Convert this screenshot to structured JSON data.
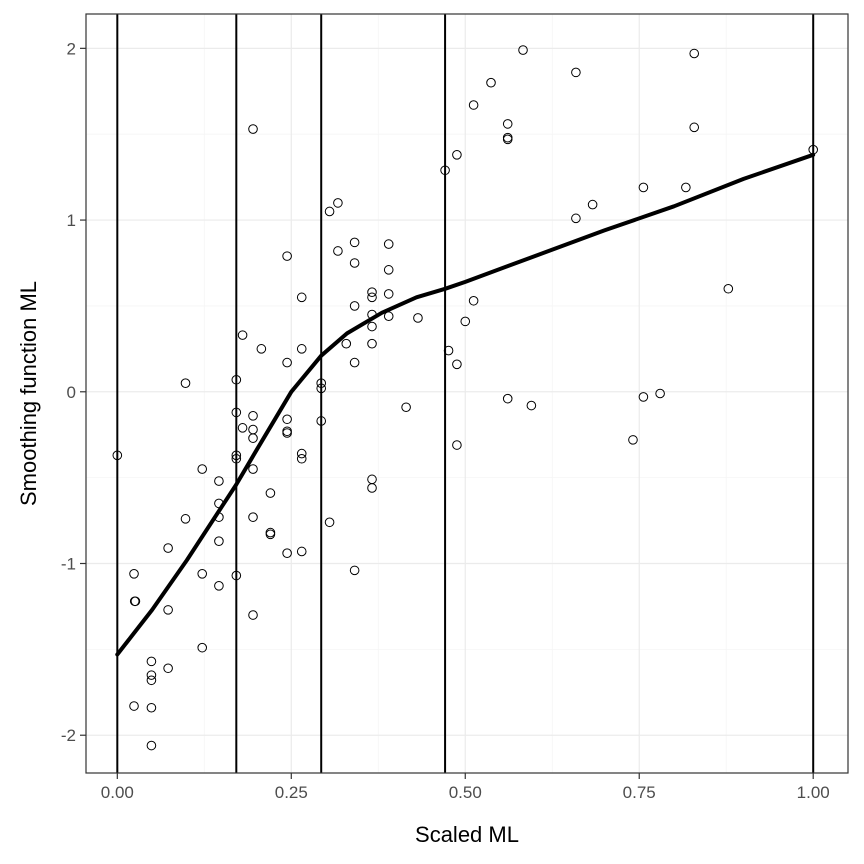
{
  "chart_data": {
    "type": "scatter",
    "title": "",
    "xlabel": "Scaled ML",
    "ylabel": "Smoothing function ML",
    "xlim": [
      -0.045,
      1.05
    ],
    "ylim": [
      -2.22,
      2.2
    ],
    "x_ticks": [
      0.0,
      0.25,
      0.5,
      0.75,
      1.0
    ],
    "x_tick_labels": [
      "0.00",
      "0.25",
      "0.50",
      "0.75",
      "1.00"
    ],
    "y_ticks": [
      -2,
      -1,
      0,
      1,
      2
    ],
    "y_tick_labels": [
      "-2",
      "-1",
      "0",
      "1",
      "2"
    ],
    "grid": true,
    "theme": "bw",
    "colors": {
      "points": "#000000",
      "smooth_line": "#000000",
      "knot_lines": "#000000",
      "grid_major": "#ebebeb",
      "grid_minor": "#f5f5f5",
      "panel_border": "#333333"
    },
    "knots": [
      0.0,
      0.171,
      0.293,
      0.471,
      1.0
    ],
    "points": [
      [
        0.0,
        -0.37
      ],
      [
        0.024,
        -1.06
      ],
      [
        0.025,
        -1.22
      ],
      [
        0.026,
        -1.22
      ],
      [
        0.024,
        -1.83
      ],
      [
        0.049,
        -1.57
      ],
      [
        0.049,
        -1.65
      ],
      [
        0.049,
        -1.68
      ],
      [
        0.049,
        -1.84
      ],
      [
        0.049,
        -2.06
      ],
      [
        0.073,
        -0.91
      ],
      [
        0.073,
        -1.27
      ],
      [
        0.073,
        -1.61
      ],
      [
        0.098,
        0.05
      ],
      [
        0.098,
        -0.74
      ],
      [
        0.122,
        -0.45
      ],
      [
        0.122,
        -1.06
      ],
      [
        0.122,
        -1.49
      ],
      [
        0.146,
        -0.52
      ],
      [
        0.146,
        -0.65
      ],
      [
        0.146,
        -0.73
      ],
      [
        0.146,
        -0.87
      ],
      [
        0.146,
        -1.13
      ],
      [
        0.171,
        0.07
      ],
      [
        0.171,
        -0.12
      ],
      [
        0.171,
        -0.37
      ],
      [
        0.171,
        -0.39
      ],
      [
        0.171,
        -1.07
      ],
      [
        0.18,
        0.33
      ],
      [
        0.18,
        -0.21
      ],
      [
        0.195,
        1.53
      ],
      [
        0.195,
        -0.14
      ],
      [
        0.195,
        -0.22
      ],
      [
        0.195,
        -0.27
      ],
      [
        0.195,
        -0.45
      ],
      [
        0.195,
        -0.73
      ],
      [
        0.195,
        -1.3
      ],
      [
        0.207,
        0.25
      ],
      [
        0.22,
        -0.59
      ],
      [
        0.22,
        -0.82
      ],
      [
        0.22,
        -0.83
      ],
      [
        0.244,
        0.79
      ],
      [
        0.244,
        0.17
      ],
      [
        0.244,
        -0.16
      ],
      [
        0.244,
        -0.23
      ],
      [
        0.244,
        -0.24
      ],
      [
        0.244,
        -0.94
      ],
      [
        0.265,
        0.55
      ],
      [
        0.265,
        0.25
      ],
      [
        0.265,
        -0.36
      ],
      [
        0.265,
        -0.39
      ],
      [
        0.265,
        -0.93
      ],
      [
        0.293,
        0.05
      ],
      [
        0.293,
        0.02
      ],
      [
        0.293,
        -0.17
      ],
      [
        0.305,
        1.05
      ],
      [
        0.305,
        -0.76
      ],
      [
        0.317,
        1.1
      ],
      [
        0.317,
        0.82
      ],
      [
        0.329,
        0.28
      ],
      [
        0.341,
        0.87
      ],
      [
        0.341,
        0.75
      ],
      [
        0.341,
        0.5
      ],
      [
        0.341,
        0.17
      ],
      [
        0.341,
        -1.04
      ],
      [
        0.366,
        0.58
      ],
      [
        0.366,
        0.55
      ],
      [
        0.366,
        0.45
      ],
      [
        0.366,
        0.38
      ],
      [
        0.366,
        0.28
      ],
      [
        0.366,
        -0.51
      ],
      [
        0.366,
        -0.56
      ],
      [
        0.39,
        0.86
      ],
      [
        0.39,
        0.71
      ],
      [
        0.39,
        0.57
      ],
      [
        0.39,
        0.44
      ],
      [
        0.415,
        -0.09
      ],
      [
        0.432,
        0.43
      ],
      [
        0.471,
        1.29
      ],
      [
        0.476,
        0.24
      ],
      [
        0.488,
        1.38
      ],
      [
        0.488,
        0.16
      ],
      [
        0.488,
        -0.31
      ],
      [
        0.5,
        0.41
      ],
      [
        0.512,
        1.67
      ],
      [
        0.512,
        0.53
      ],
      [
        0.537,
        1.8
      ],
      [
        0.561,
        1.56
      ],
      [
        0.561,
        1.48
      ],
      [
        0.561,
        1.47
      ],
      [
        0.561,
        -0.04
      ],
      [
        0.583,
        1.99
      ],
      [
        0.595,
        -0.08
      ],
      [
        0.659,
        1.86
      ],
      [
        0.659,
        1.01
      ],
      [
        0.683,
        1.09
      ],
      [
        0.741,
        -0.28
      ],
      [
        0.756,
        1.19
      ],
      [
        0.756,
        -0.03
      ],
      [
        0.78,
        -0.01
      ],
      [
        0.817,
        1.19
      ],
      [
        0.829,
        1.97
      ],
      [
        0.829,
        1.54
      ],
      [
        0.878,
        0.6
      ],
      [
        1.0,
        1.41
      ]
    ],
    "smooth_line": [
      [
        0.0,
        -1.53
      ],
      [
        0.05,
        -1.27
      ],
      [
        0.1,
        -0.98
      ],
      [
        0.15,
        -0.67
      ],
      [
        0.171,
        -0.54
      ],
      [
        0.2,
        -0.34
      ],
      [
        0.25,
        0.0
      ],
      [
        0.293,
        0.21
      ],
      [
        0.33,
        0.34
      ],
      [
        0.38,
        0.46
      ],
      [
        0.43,
        0.55
      ],
      [
        0.471,
        0.6
      ],
      [
        0.5,
        0.64
      ],
      [
        0.6,
        0.79
      ],
      [
        0.7,
        0.94
      ],
      [
        0.8,
        1.08
      ],
      [
        0.9,
        1.24
      ],
      [
        1.0,
        1.38
      ]
    ]
  }
}
